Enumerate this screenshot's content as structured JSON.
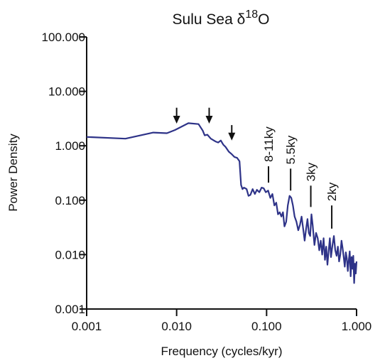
{
  "chart_data": {
    "type": "line",
    "title": {
      "text": "Sulu Sea δ",
      "sup": "18",
      "suffix": "O"
    },
    "xlabel": "Frequency (cycles/kyr)",
    "ylabel": "Power Density",
    "xscale": "log",
    "yscale": "log",
    "xlim": [
      0.001,
      1.0
    ],
    "ylim": [
      0.001,
      100.0
    ],
    "x_ticks": [
      {
        "value": 0.001,
        "label": "0.001"
      },
      {
        "value": 0.01,
        "label": "0.010"
      },
      {
        "value": 0.1,
        "label": "0.100"
      },
      {
        "value": 1.0,
        "label": "1.000"
      }
    ],
    "y_ticks": [
      {
        "value": 0.001,
        "label": "0.001"
      },
      {
        "value": 0.01,
        "label": "0.010"
      },
      {
        "value": 0.1,
        "label": "0.100"
      },
      {
        "value": 1.0,
        "label": "1.000"
      },
      {
        "value": 10.0,
        "label": "10.000"
      },
      {
        "value": 100.0,
        "label": "100.000"
      }
    ],
    "grid": false,
    "series_color": "#2e3388",
    "series": [
      {
        "x": [
          0.001,
          0.0027,
          0.0055,
          0.0078,
          0.0096,
          0.0135,
          0.0175,
          0.0195,
          0.0205,
          0.022,
          0.024,
          0.027,
          0.029,
          0.031,
          0.033,
          0.035,
          0.038,
          0.041,
          0.044,
          0.047,
          0.05,
          0.052,
          0.054,
          0.056,
          0.058,
          0.06,
          0.063,
          0.066,
          0.07,
          0.074,
          0.078,
          0.083,
          0.088,
          0.093,
          0.098,
          0.104,
          0.11,
          0.116,
          0.122,
          0.128,
          0.134,
          0.14,
          0.146,
          0.152,
          0.158,
          0.165,
          0.172,
          0.18,
          0.188,
          0.196,
          0.205,
          0.215,
          0.225,
          0.235,
          0.245,
          0.255,
          0.265,
          0.275,
          0.285,
          0.295,
          0.305,
          0.315,
          0.325,
          0.34,
          0.355,
          0.37,
          0.385,
          0.4,
          0.415,
          0.43,
          0.445,
          0.46,
          0.475,
          0.49,
          0.505,
          0.52,
          0.54,
          0.56,
          0.58,
          0.6,
          0.62,
          0.64,
          0.66,
          0.68,
          0.7,
          0.72,
          0.74,
          0.76,
          0.78,
          0.8,
          0.82,
          0.84,
          0.86,
          0.88,
          0.9,
          0.92,
          0.94,
          0.96,
          0.98,
          1.0
        ],
        "y": [
          1.45,
          1.35,
          1.75,
          1.7,
          1.95,
          2.6,
          2.5,
          1.9,
          1.55,
          1.6,
          1.35,
          1.2,
          1.15,
          1.25,
          1.05,
          0.95,
          0.78,
          0.7,
          0.62,
          0.6,
          0.52,
          0.19,
          0.16,
          0.17,
          0.165,
          0.16,
          0.12,
          0.125,
          0.16,
          0.13,
          0.155,
          0.14,
          0.17,
          0.165,
          0.14,
          0.15,
          0.11,
          0.13,
          0.08,
          0.09,
          0.055,
          0.06,
          0.05,
          0.06,
          0.033,
          0.04,
          0.08,
          0.12,
          0.11,
          0.08,
          0.05,
          0.04,
          0.028,
          0.035,
          0.05,
          0.03,
          0.018,
          0.03,
          0.045,
          0.025,
          0.022,
          0.055,
          0.035,
          0.015,
          0.025,
          0.02,
          0.012,
          0.018,
          0.01,
          0.02,
          0.008,
          0.014,
          0.0065,
          0.012,
          0.02,
          0.009,
          0.015,
          0.022,
          0.012,
          0.0095,
          0.014,
          0.0075,
          0.01,
          0.018,
          0.013,
          0.009,
          0.006,
          0.011,
          0.0085,
          0.005,
          0.008,
          0.0115,
          0.004,
          0.009,
          0.0055,
          0.0095,
          0.003,
          0.0068,
          0.0045,
          0.0075
        ]
      }
    ],
    "arrows": [
      {
        "x": 0.01,
        "y_top": 5.0,
        "y_tip": 2.55
      },
      {
        "x": 0.023,
        "y_top": 5.0,
        "y_tip": 2.55
      },
      {
        "x": 0.041,
        "y_top": 2.4,
        "y_tip": 1.25
      }
    ],
    "peak_labels": [
      {
        "text": "8-11ky",
        "x": 0.105,
        "y_bar_low": 0.21,
        "y_bar_high": 0.42
      },
      {
        "text": "5.5ky",
        "x": 0.185,
        "y_bar_low": 0.15,
        "y_bar_high": 0.38
      },
      {
        "text": "3ky",
        "x": 0.31,
        "y_bar_low": 0.075,
        "y_bar_high": 0.185
      },
      {
        "text": "2ky",
        "x": 0.53,
        "y_bar_low": 0.03,
        "y_bar_high": 0.08
      }
    ]
  }
}
